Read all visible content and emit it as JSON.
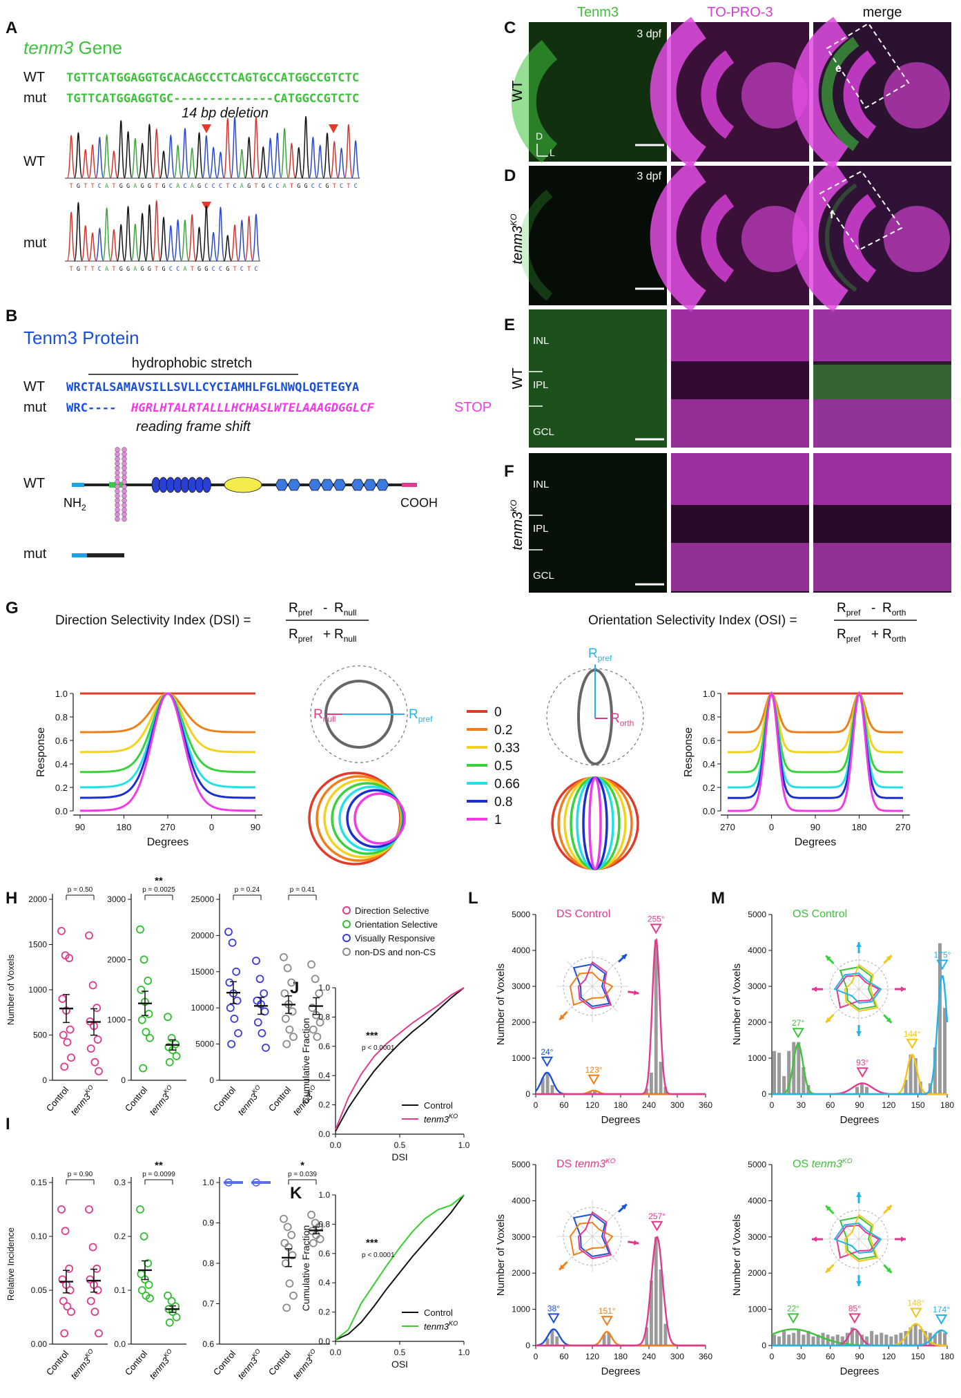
{
  "colors": {
    "green": "#3ec23b",
    "magenta": "#e2398e",
    "blue": "#1b2fd0",
    "dblue": "#1a4fd8",
    "ltblue": "#1fb4ea",
    "red": "#e23a2a",
    "orange": "#f07f19",
    "yellow": "#f3d21c",
    "lgreen": "#39d13c",
    "cyan": "#22e0e6",
    "navy": "#1b2fd0",
    "pink": "#f03ae6",
    "gray": "#888888",
    "dark": "#111111"
  },
  "panel_letters": [
    "A",
    "B",
    "C",
    "D",
    "E",
    "F",
    "G",
    "H",
    "I",
    "J",
    "K",
    "L",
    "M"
  ],
  "panelA": {
    "gene_italic": "tenm3",
    "gene_rest": " Gene",
    "wt_label": "WT",
    "mut_label": "mut",
    "wt_seq": "TGTTCATGGAGGTGCACAGCCCTCAGTGCCATGGCCGTCTC",
    "mut_seq": "TGTTCATGGAGGTGC--------------CATGGCCGTCTC",
    "deletion_label": "14 bp deletion",
    "trace_wt_label": "WT",
    "trace_mut_label": "mut",
    "trace_wt_bases": "TGTTCATGGAGGTGCACAGCCCTCAGTGCCATGGCCGTCTC",
    "trace_mut_bases": "TGTTCATGGAGGTGCCATGGCCGTCTC"
  },
  "panelB": {
    "title": "Tenm3 Protein",
    "hydrophobic_label": "hydrophobic stretch",
    "wt_label": "WT",
    "mut_label": "mut",
    "wt_seq": "WRCTALSAMAVSILLSVLLCYCIAMHLFGLNWQLQETEGYA",
    "mut_seq_start": "WRC----",
    "mut_seq_shift": "HGRLHTALRTALLLHCHASLWTELAAAGDGGLCF",
    "stop": "STOP",
    "frame_label": "reading frame shift",
    "domain_wt_label": "WT",
    "domain_mut_label": "mut",
    "nh2": "NH",
    "nh2_sub": "2",
    "cooh": "COOH"
  },
  "panelCDEF": {
    "col_headers": [
      "Tenm3",
      "TO-PRO-3",
      "merge"
    ],
    "stage": "3 dpf",
    "row_labels": [
      "WT",
      "tenm3",
      "WT",
      "tenm3"
    ],
    "ko_sup": "KO",
    "axis_d": "D",
    "axis_l": "L",
    "inset_c": "e",
    "inset_d": "f",
    "layers": [
      "INL",
      "IPL",
      "GCL"
    ]
  },
  "panelG": {
    "dsi_label": "Direction Selectivity Index (DSI) =",
    "osi_label": "Orientation Selectivity Index (OSI) =",
    "r": "R",
    "pref": "pref",
    "null": "null",
    "orth": "orth",
    "legend_values": [
      "0",
      "0.2",
      "0.33",
      "0.5",
      "0.66",
      "0.8",
      "1"
    ],
    "ylabel": "Response",
    "xlabel": "Degrees",
    "ds_xticks": [
      "90",
      "180",
      "270",
      "0",
      "90"
    ],
    "os_xticks": [
      "270",
      "0",
      "90",
      "180",
      "270"
    ],
    "yticks": [
      "1.0",
      "0.8",
      "0.6",
      "0.4",
      "0.2",
      "0.0"
    ]
  },
  "panelH": {
    "ylabel": "Number of Voxels",
    "p1": "p = 0.50",
    "p2": "p = 0.0025",
    "sig2": "**",
    "p3a": "p = 0.24",
    "p3b": "p = 0.41",
    "yt1": [
      "2000",
      "1500",
      "1000",
      "500",
      "0"
    ],
    "yt2": [
      "3000",
      "2000",
      "1000",
      "0"
    ],
    "yt3": [
      "25000",
      "20000",
      "15000",
      "10000",
      "5000",
      "0"
    ],
    "ctrl": "Control",
    "ko": "tenm3",
    "ko_sup": "KO"
  },
  "panelI": {
    "ylabel": "Relative Incidence",
    "p1": "p = 0.90",
    "p2": "p = 0.0099",
    "sig2": "**",
    "p3": "p = 0.039",
    "sig3": "*",
    "yt1": [
      "0.15",
      "0.10",
      "0.05",
      "0.00"
    ],
    "yt2": [
      "0.3",
      "0.2",
      "0.1",
      "0.0"
    ],
    "yt3": [
      "1.0",
      "0.9",
      "0.8",
      "0.7",
      "0.6"
    ]
  },
  "legendH": {
    "items": [
      "Direction Selective",
      "Orientation Selective",
      "Visually Responsive",
      "non-DS and non-CS"
    ]
  },
  "panelJ": {
    "ylabel": "Cumulative Fraction",
    "xlabel": "DSI",
    "sig": "***",
    "p": "p < 0.0001",
    "legend_ctrl": "Control",
    "legend_ko": "tenm3",
    "yticks": [
      "1.0",
      "0.8",
      "0.6",
      "0.4",
      "0.2",
      "0.0"
    ],
    "xticks": [
      "0.0",
      "0.5",
      "1.0"
    ]
  },
  "panelK": {
    "ylabel": "Cumulative Fraction",
    "xlabel": "OSI",
    "sig": "***",
    "p": "p < 0.0001",
    "legend_ctrl": "Control",
    "legend_ko": "tenm3"
  },
  "panelL": {
    "title_ctrl": "DS Control",
    "title_ko_a": "DS ",
    "title_ko_b": "tenm3",
    "ylabel": "Number of Voxels",
    "xlabel": "Degrees",
    "yticks": [
      "5000",
      "4000",
      "3000",
      "2000",
      "1000",
      "0"
    ],
    "xticks": [
      "0",
      "60",
      "120",
      "180",
      "240",
      "300",
      "360"
    ],
    "ctrl_peaks": [
      "24°",
      "123°",
      "255°"
    ],
    "ko_peaks": [
      "38°",
      "151°",
      "257°"
    ]
  },
  "panelM": {
    "title_ctrl": "OS Control",
    "title_ko_a": "OS ",
    "title_ko_b": "tenm3",
    "ylabel": "Number of Voxels",
    "xlabel": "Degrees",
    "yticks": [
      "5000",
      "4000",
      "3000",
      "2000",
      "1000",
      "0"
    ],
    "xticks": [
      "0",
      "30",
      "60",
      "90",
      "120",
      "150",
      "180"
    ],
    "ctrl_peaks": [
      "27°",
      "93°",
      "144°",
      "175°"
    ],
    "ko_peaks": [
      "22°",
      "85°",
      "148°",
      "174°"
    ]
  },
  "chart_data": [
    {
      "type": "line",
      "title": "",
      "xlabel": "Degrees",
      "ylabel": "Response",
      "ylim": [
        0,
        1
      ],
      "x": [
        90,
        180,
        270,
        0,
        90
      ],
      "series": [
        {
          "name": "0",
          "values": [
            1.0,
            1.0,
            1.0,
            1.0,
            1.0
          ]
        },
        {
          "name": "0.2",
          "values": [
            0.67,
            0.8,
            1.0,
            0.8,
            0.67
          ]
        },
        {
          "name": "0.33",
          "values": [
            0.5,
            0.71,
            1.0,
            0.71,
            0.5
          ]
        },
        {
          "name": "0.5",
          "values": [
            0.33,
            0.6,
            1.0,
            0.6,
            0.33
          ]
        },
        {
          "name": "0.66",
          "values": [
            0.2,
            0.5,
            1.0,
            0.5,
            0.2
          ]
        },
        {
          "name": "0.8",
          "values": [
            0.11,
            0.44,
            1.0,
            0.44,
            0.11
          ]
        },
        {
          "name": "1",
          "values": [
            0.0,
            0.35,
            1.0,
            0.35,
            0.0
          ]
        }
      ]
    },
    {
      "type": "line",
      "title": "",
      "xlabel": "Degrees",
      "ylabel": "Response",
      "ylim": [
        0,
        1
      ],
      "x": [
        270,
        0,
        90,
        180,
        270
      ],
      "series": [
        {
          "name": "0",
          "values": [
            1.0,
            1.0,
            1.0,
            1.0,
            1.0
          ]
        },
        {
          "name": "0.2",
          "values": [
            0.67,
            1.0,
            0.67,
            1.0,
            0.67
          ]
        },
        {
          "name": "0.33",
          "values": [
            0.5,
            1.0,
            0.5,
            1.0,
            0.5
          ]
        },
        {
          "name": "0.5",
          "values": [
            0.33,
            1.0,
            0.33,
            1.0,
            0.33
          ]
        },
        {
          "name": "0.66",
          "values": [
            0.2,
            1.0,
            0.2,
            1.0,
            0.2
          ]
        },
        {
          "name": "0.8",
          "values": [
            0.11,
            1.0,
            0.11,
            1.0,
            0.11
          ]
        },
        {
          "name": "1",
          "values": [
            0.0,
            1.0,
            0.0,
            1.0,
            0.0
          ]
        }
      ]
    },
    {
      "type": "scatter",
      "title": "",
      "ylabel": "Number of Voxels",
      "categories": [
        "Control",
        "tenm3KO"
      ],
      "series": [
        {
          "name": "Direction Selective",
          "values": [
            [
              1650,
              1380,
              1350,
              900,
              770,
              560,
              500,
              420,
              250,
              150
            ],
            [
              1600,
              1050,
              800,
              650,
              600,
              450,
              350,
              200,
              100
            ]
          ]
        }
      ],
      "ylim": [
        0,
        2000
      ]
    },
    {
      "type": "scatter",
      "title": "",
      "ylabel": "Number of Voxels",
      "categories": [
        "Control",
        "tenm3KO"
      ],
      "series": [
        {
          "name": "Orientation Selective",
          "values": [
            [
              2500,
              2000,
              1650,
              1500,
              1300,
              1100,
              1000,
              800,
              700,
              200
            ],
            [
              1050,
              700,
              600,
              550,
              500,
              400,
              300
            ]
          ]
        }
      ],
      "ylim": [
        0,
        3000
      ]
    },
    {
      "type": "scatter",
      "title": "",
      "ylabel": "Number of Voxels",
      "categories": [
        "Control",
        "tenm3KO",
        "Control",
        "tenm3KO"
      ],
      "series": [
        {
          "name": "Visually Responsive",
          "values": [
            [
              20500,
              19000,
              15000,
              13500,
              12000,
              11000,
              10000,
              8500,
              6500,
              5000
            ],
            [
              16500,
              14000,
              12000,
              11000,
              10500,
              9500,
              8000,
              6500,
              4500
            ]
          ]
        },
        {
          "name": "non-DS and non-CS",
          "values": [
            [
              17000,
              15500,
              13500,
              12000,
              10500,
              9500,
              8500,
              7000,
              6000,
              5000
            ],
            [
              16000,
              14000,
              12000,
              10000,
              9000,
              8000,
              7000,
              6000
            ]
          ]
        }
      ],
      "ylim": [
        0,
        25000
      ]
    },
    {
      "type": "scatter",
      "title": "",
      "ylabel": "Relative Incidence",
      "categories": [
        "Control",
        "tenm3KO"
      ],
      "series": [
        {
          "name": "Direction Selective",
          "values": [
            [
              0.125,
              0.105,
              0.07,
              0.06,
              0.055,
              0.05,
              0.04,
              0.035,
              0.03,
              0.01
            ],
            [
              0.125,
              0.09,
              0.07,
              0.06,
              0.055,
              0.05,
              0.04,
              0.03,
              0.01
            ]
          ]
        }
      ],
      "ylim": [
        0,
        0.15
      ]
    },
    {
      "type": "scatter",
      "title": "",
      "ylabel": "Relative Incidence",
      "categories": [
        "Control",
        "tenm3KO"
      ],
      "series": [
        {
          "name": "Orientation Selective",
          "values": [
            [
              0.25,
              0.2,
              0.15,
              0.13,
              0.12,
              0.11,
              0.1,
              0.09,
              0.085
            ],
            [
              0.09,
              0.08,
              0.07,
              0.065,
              0.06,
              0.05,
              0.04
            ]
          ]
        }
      ],
      "ylim": [
        0,
        0.3
      ]
    },
    {
      "type": "scatter",
      "title": "",
      "ylabel": "Relative Incidence",
      "categories": [
        "Control",
        "tenm3KO",
        "Control",
        "tenm3KO"
      ],
      "series": [
        {
          "name": "Visually Responsive",
          "values": [
            [
              1.0
            ],
            [
              1.0
            ]
          ]
        },
        {
          "name": "non-DS and non-CS",
          "values": [
            [
              0.91,
              0.89,
              0.87,
              0.85,
              0.84,
              0.82,
              0.8,
              0.75,
              0.72,
              0.69
            ],
            [
              0.92,
              0.9,
              0.89,
              0.88,
              0.87,
              0.86,
              0.85
            ]
          ]
        }
      ],
      "ylim": [
        0.6,
        1.0
      ]
    },
    {
      "type": "line",
      "title": "",
      "xlabel": "DSI",
      "ylabel": "Cumulative Fraction",
      "xlim": [
        0,
        1
      ],
      "ylim": [
        0,
        1
      ],
      "x": [
        0,
        0.1,
        0.2,
        0.3,
        0.4,
        0.5,
        0.6,
        0.7,
        0.8,
        0.9,
        1.0
      ],
      "series": [
        {
          "name": "Control",
          "values": [
            0.02,
            0.18,
            0.31,
            0.43,
            0.53,
            0.62,
            0.7,
            0.77,
            0.85,
            0.93,
            1.0
          ]
        },
        {
          "name": "tenm3KO",
          "values": [
            0.03,
            0.25,
            0.41,
            0.53,
            0.62,
            0.69,
            0.76,
            0.82,
            0.88,
            0.95,
            1.0
          ]
        }
      ]
    },
    {
      "type": "line",
      "title": "",
      "xlabel": "OSI",
      "ylabel": "Cumulative Fraction",
      "xlim": [
        0,
        1
      ],
      "ylim": [
        0,
        1
      ],
      "x": [
        0,
        0.1,
        0.2,
        0.3,
        0.4,
        0.5,
        0.6,
        0.7,
        0.8,
        0.9,
        1.0
      ],
      "series": [
        {
          "name": "Control",
          "values": [
            0.01,
            0.05,
            0.13,
            0.24,
            0.36,
            0.47,
            0.58,
            0.68,
            0.78,
            0.88,
            1.0
          ]
        },
        {
          "name": "tenm3KO",
          "values": [
            0.01,
            0.08,
            0.26,
            0.39,
            0.52,
            0.64,
            0.75,
            0.84,
            0.9,
            0.93,
            1.0
          ]
        }
      ]
    },
    {
      "type": "bar",
      "title": "DS Control",
      "xlabel": "Degrees",
      "ylabel": "Number of Voxels",
      "xlim": [
        0,
        360
      ],
      "ylim": [
        0,
        5000
      ],
      "x": [
        15,
        25,
        35,
        115,
        125,
        235,
        245,
        255,
        265,
        275
      ],
      "values": [
        450,
        600,
        250,
        80,
        100,
        150,
        600,
        4300,
        900,
        200
      ]
    },
    {
      "type": "bar",
      "title": "DS tenm3KO",
      "xlabel": "Degrees",
      "ylabel": "Number of Voxels",
      "xlim": [
        0,
        360
      ],
      "ylim": [
        0,
        5000
      ],
      "x": [
        25,
        35,
        45,
        145,
        155,
        235,
        245,
        255,
        265,
        275
      ],
      "values": [
        200,
        450,
        250,
        300,
        350,
        500,
        1800,
        3000,
        2100,
        600
      ]
    },
    {
      "type": "bar",
      "title": "OS Control",
      "xlabel": "Degrees",
      "ylabel": "Number of Voxels",
      "xlim": [
        0,
        180
      ],
      "ylim": [
        0,
        5000
      ],
      "x": [
        2.5,
        7.5,
        12.5,
        17.5,
        22.5,
        27.5,
        32.5,
        37.5,
        87.5,
        92.5,
        97.5,
        137.5,
        142.5,
        147.5,
        152.5,
        162.5,
        167.5,
        172.5,
        177.5
      ],
      "values": [
        1200,
        1150,
        500,
        1200,
        1450,
        1450,
        750,
        250,
        200,
        300,
        200,
        400,
        1100,
        1000,
        350,
        300,
        1300,
        4200,
        2400
      ]
    },
    {
      "type": "bar",
      "title": "OS tenm3KO",
      "xlabel": "Degrees",
      "ylabel": "Number of Voxels",
      "xlim": [
        0,
        180
      ],
      "ylim": [
        0,
        5000
      ],
      "x": [
        2.5,
        7.5,
        12.5,
        17.5,
        22.5,
        27.5,
        32.5,
        37.5,
        42.5,
        47.5,
        52.5,
        57.5,
        62.5,
        67.5,
        72.5,
        77.5,
        82.5,
        87.5,
        92.5,
        97.5,
        102.5,
        107.5,
        112.5,
        117.5,
        122.5,
        127.5,
        132.5,
        137.5,
        142.5,
        147.5,
        152.5,
        157.5,
        162.5,
        167.5,
        172.5,
        177.5
      ],
      "values": [
        300,
        250,
        400,
        300,
        350,
        450,
        300,
        400,
        250,
        300,
        350,
        300,
        250,
        300,
        250,
        350,
        500,
        400,
        300,
        250,
        400,
        300,
        350,
        300,
        250,
        300,
        350,
        400,
        500,
        600,
        450,
        400,
        350,
        300,
        400,
        350
      ]
    }
  ]
}
